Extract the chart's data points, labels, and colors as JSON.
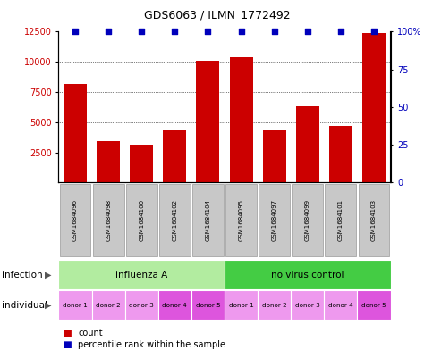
{
  "title": "GDS6063 / ILMN_1772492",
  "samples": [
    "GSM1684096",
    "GSM1684098",
    "GSM1684100",
    "GSM1684102",
    "GSM1684104",
    "GSM1684095",
    "GSM1684097",
    "GSM1684099",
    "GSM1684101",
    "GSM1684103"
  ],
  "counts": [
    8200,
    3400,
    3100,
    4300,
    10100,
    10400,
    4300,
    6300,
    4700,
    12400
  ],
  "percentile_at_top": [
    true,
    true,
    true,
    true,
    true,
    true,
    true,
    true,
    true,
    true
  ],
  "ylim_left": [
    0,
    12500
  ],
  "ylim_right": [
    0,
    100
  ],
  "yticks_left": [
    2500,
    5000,
    7500,
    10000,
    12500
  ],
  "ytick_labels_left": [
    "2500",
    "5000",
    "7500",
    "10000",
    "12500"
  ],
  "yticks_right": [
    0,
    25,
    50,
    75,
    100
  ],
  "ytick_labels_right": [
    "0",
    "25",
    "50",
    "75",
    "100%"
  ],
  "grid_lines": [
    5000,
    7500,
    10000
  ],
  "infection_groups": [
    {
      "label": "influenza A",
      "start": 0,
      "end": 5,
      "color": "#B2ECA0"
    },
    {
      "label": "no virus control",
      "start": 5,
      "end": 10,
      "color": "#44CC44"
    }
  ],
  "individual_labels": [
    "donor 1",
    "donor 2",
    "donor 3",
    "donor 4",
    "donor 5",
    "donor 1",
    "donor 2",
    "donor 3",
    "donor 4",
    "donor 5"
  ],
  "individual_dark_indices": [
    3,
    4,
    9
  ],
  "individual_color_light": "#EE99EE",
  "individual_color_dark": "#DD55DD",
  "bar_color": "#CC0000",
  "dot_color": "#0000BB",
  "sample_box_color": "#C8C8C8",
  "sample_box_edge_color": "#999999",
  "legend_count_label": "count",
  "legend_pct_label": "percentile rank within the sample",
  "infection_label": "infection",
  "individual_label": "individual",
  "bar_width": 0.7
}
